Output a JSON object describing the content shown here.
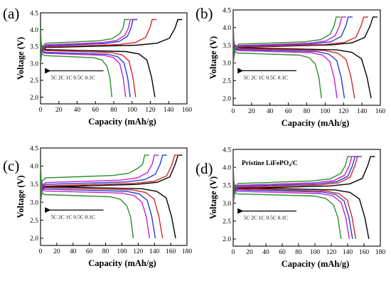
{
  "figure": {
    "colors": {
      "0.1C": "#000000",
      "0.5C": "#d62728",
      "1C": "#1f3fd6",
      "2C": "#c81fc8",
      "5C": "#2a8f2a"
    },
    "panels": [
      {
        "label": "(a)",
        "rate_text": "5C  2C  1C  0.5C  0.1C",
        "annotation": ""
      },
      {
        "label": "(b)",
        "rate_text": "5C  2C  1C  0.5C  0.1C",
        "annotation": ""
      },
      {
        "label": "(c)",
        "rate_text": "5C  2C  1C  0.5C  0.1C",
        "annotation": ""
      },
      {
        "label": "(d)",
        "rate_text": "5C  2C  1C  0.5C  0.1C",
        "annotation": "Pristine LiFePO₄/C"
      }
    ]
  },
  "chart_data": [
    {
      "type": "line",
      "panel": "(a)",
      "xlabel": "Capacity  (mAh/g)",
      "ylabel": "Voltage (V)",
      "xlim": [
        0,
        160
      ],
      "ylim": [
        1.8,
        4.5
      ],
      "xticks": [
        0,
        20,
        40,
        60,
        80,
        100,
        120,
        140,
        160
      ],
      "yticks": [
        2.0,
        2.5,
        3.0,
        3.5,
        4.0,
        4.5
      ],
      "legend": "arrow with rate labels, lower left",
      "series": [
        {
          "name": "0.1C",
          "charge_capacity": 150,
          "discharge_capacity": 125,
          "charge_plateau": 3.5,
          "discharge_plateau": 3.38
        },
        {
          "name": "0.5C",
          "charge_capacity": 122,
          "discharge_capacity": 104,
          "charge_plateau": 3.52,
          "discharge_plateau": 3.35
        },
        {
          "name": "1C",
          "charge_capacity": 101,
          "discharge_capacity": 98,
          "charge_plateau": 3.55,
          "discharge_plateau": 3.3
        },
        {
          "name": "2C",
          "charge_capacity": 98,
          "discharge_capacity": 93,
          "charge_plateau": 3.58,
          "discharge_plateau": 3.27
        },
        {
          "name": "5C",
          "charge_capacity": 92,
          "discharge_capacity": 78,
          "charge_plateau": 3.63,
          "discharge_plateau": 3.2
        }
      ]
    },
    {
      "type": "line",
      "panel": "(b)",
      "xlabel": "Capacity  (mAh/g)",
      "ylabel": "Voltage (V)",
      "xlim": [
        0,
        160
      ],
      "ylim": [
        1.8,
        4.5
      ],
      "xticks": [
        0,
        20,
        40,
        60,
        80,
        100,
        120,
        140,
        160
      ],
      "yticks": [
        2.0,
        2.5,
        3.0,
        3.5,
        4.0,
        4.5
      ],
      "legend": "arrow with rate labels, lower left",
      "series": [
        {
          "name": "0.1C",
          "charge_capacity": 152,
          "discharge_capacity": 150,
          "charge_plateau": 3.47,
          "discharge_plateau": 3.4
        },
        {
          "name": "0.5C",
          "charge_capacity": 142,
          "discharge_capacity": 132,
          "charge_plateau": 3.48,
          "discharge_plateau": 3.38
        },
        {
          "name": "1C",
          "charge_capacity": 125,
          "discharge_capacity": 121,
          "charge_plateau": 3.5,
          "discharge_plateau": 3.35
        },
        {
          "name": "2C",
          "charge_capacity": 118,
          "discharge_capacity": 113,
          "charge_plateau": 3.52,
          "discharge_plateau": 3.32
        },
        {
          "name": "5C",
          "charge_capacity": 112,
          "discharge_capacity": 96,
          "charge_plateau": 3.56,
          "discharge_plateau": 3.25
        }
      ]
    },
    {
      "type": "line",
      "panel": "(c)",
      "xlabel": "Capacity  (mAh/g)",
      "ylabel": "Voltage (V)",
      "xlim": [
        0,
        180
      ],
      "ylim": [
        1.8,
        4.5
      ],
      "xticks": [
        0,
        20,
        40,
        60,
        80,
        100,
        120,
        140,
        160,
        180
      ],
      "yticks": [
        2.0,
        2.5,
        3.0,
        3.5,
        4.0,
        4.5
      ],
      "legend": "arrow with rate labels, lower left",
      "series": [
        {
          "name": "0.1C",
          "charge_capacity": 169,
          "discharge_capacity": 166,
          "charge_plateau": 3.45,
          "discharge_plateau": 3.4
        },
        {
          "name": "0.5C",
          "charge_capacity": 165,
          "discharge_capacity": 150,
          "charge_plateau": 3.48,
          "discharge_plateau": 3.37
        },
        {
          "name": "1C",
          "charge_capacity": 150,
          "discharge_capacity": 141,
          "charge_plateau": 3.52,
          "discharge_plateau": 3.33
        },
        {
          "name": "2C",
          "charge_capacity": 140,
          "discharge_capacity": 134,
          "charge_plateau": 3.57,
          "discharge_plateau": 3.28
        },
        {
          "name": "5C",
          "charge_capacity": 128,
          "discharge_capacity": 114,
          "charge_plateau": 3.7,
          "discharge_plateau": 3.18
        }
      ]
    },
    {
      "type": "line",
      "panel": "(d)",
      "xlabel": "Capacity  (mAh/g)",
      "ylabel": "Voltage (V)",
      "xlim": [
        0,
        180
      ],
      "ylim": [
        1.8,
        4.5
      ],
      "xticks": [
        0,
        20,
        40,
        60,
        80,
        100,
        120,
        140,
        160,
        180
      ],
      "yticks": [
        2.0,
        2.5,
        3.0,
        3.5,
        4.0,
        4.5
      ],
      "legend": "arrow with rate labels, lower left",
      "series": [
        {
          "name": "0.1C",
          "charge_capacity": 168,
          "discharge_capacity": 166,
          "charge_plateau": 3.44,
          "discharge_plateau": 3.4
        },
        {
          "name": "0.5C",
          "charge_capacity": 152,
          "discharge_capacity": 150,
          "charge_plateau": 3.47,
          "discharge_plateau": 3.37
        },
        {
          "name": "1C",
          "charge_capacity": 149,
          "discharge_capacity": 146,
          "charge_plateau": 3.5,
          "discharge_plateau": 3.34
        },
        {
          "name": "2C",
          "charge_capacity": 145,
          "discharge_capacity": 142,
          "charge_plateau": 3.53,
          "discharge_plateau": 3.3
        },
        {
          "name": "5C",
          "charge_capacity": 140,
          "discharge_capacity": 132,
          "charge_plateau": 3.58,
          "discharge_plateau": 3.23
        }
      ]
    }
  ]
}
